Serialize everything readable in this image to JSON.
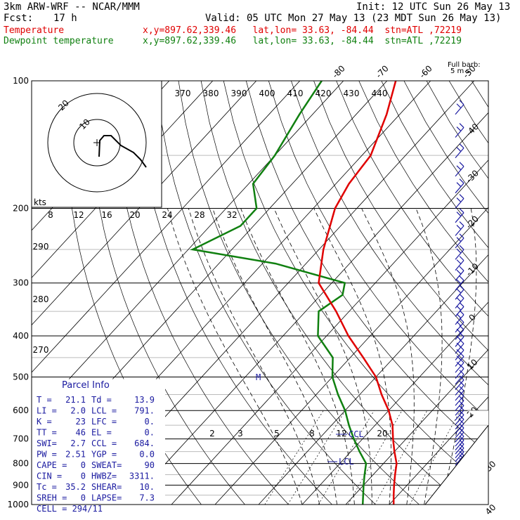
{
  "header": {
    "model": "3km ARW-WRF -- NCAR/MMM",
    "init": "Init: 12 UTC Sun 26 May 13",
    "fcst_label": "Fcst:",
    "fcst_value": "17 h",
    "valid": "Valid: 05 UTC Mon 27 May 13 (23 MDT Sun 26 May 13)",
    "temp_label": "Temperature",
    "dew_label": "Dewpoint temperature",
    "temp_loc": "x,y=897.62,339.46   lat,lon= 33.63, -84.44  stn=ATL ,72219",
    "dew_loc": "x,y=897.62,339.46   lat,lon= 33.63, -84.44  stn=ATL ,72219"
  },
  "colors": {
    "temperature": "#e00000",
    "dewpoint": "#108010",
    "wind": "#1a1aa0",
    "grid": "#000000"
  },
  "chart_data": {
    "type": "line",
    "title": "",
    "y_axis": "pressure (hPa), log scale",
    "pressure_ticks": [
      100,
      200,
      300,
      400,
      500,
      600,
      700,
      800,
      900,
      1000
    ],
    "isotherm_labels": [
      -80,
      -70,
      -60,
      -50,
      -40,
      -30,
      -20,
      -10,
      0,
      10,
      20,
      30,
      40
    ],
    "theta_labels": [
      370,
      380,
      390,
      400,
      410,
      420,
      430,
      440
    ],
    "mixing_ratio_labels_upper": [
      8,
      12,
      16,
      20,
      24,
      28,
      32
    ],
    "mixing_ratio_labels_lower": [
      2,
      3,
      5,
      8,
      12,
      20
    ],
    "theta_e_labels": [
      290,
      280,
      270
    ],
    "series": [
      {
        "name": "Temperature",
        "p": [
          100,
          120,
          150,
          175,
          200,
          250,
          300,
          350,
          400,
          450,
          500,
          550,
          600,
          650,
          700,
          750,
          800,
          850,
          900,
          950,
          1000
        ],
        "t": [
          -68,
          -63,
          -58,
          -57,
          -55,
          -49,
          -43,
          -33,
          -25,
          -17,
          -10,
          -5,
          0,
          4,
          7,
          10,
          13,
          15,
          17,
          19,
          21
        ]
      },
      {
        "name": "Dewpoint temperature",
        "p": [
          100,
          120,
          150,
          175,
          200,
          220,
          250,
          270,
          300,
          320,
          350,
          400,
          450,
          500,
          550,
          600,
          650,
          700,
          750,
          800,
          850,
          900,
          950,
          1000
        ],
        "t": [
          -85,
          -83,
          -80,
          -79,
          -73,
          -73,
          -79,
          -57,
          -37,
          -35,
          -37,
          -32,
          -24,
          -20,
          -15,
          -10,
          -6,
          -2,
          2,
          6,
          8,
          10,
          12,
          13.9
        ]
      }
    ],
    "hodograph_rings": [
      "20",
      "10"
    ],
    "parcel_info": {
      "title": "Parcel Info",
      "rows": [
        [
          "T  =",
          "21.1",
          "Td  =",
          "13.9"
        ],
        [
          "LI =",
          "2.0",
          "LCL =",
          "791."
        ],
        [
          "K  =",
          "23",
          "LFC =",
          "0."
        ],
        [
          "TT =",
          "46",
          "EL  =",
          "0."
        ],
        [
          "SWI=",
          "2.7",
          "CCL =",
          "684."
        ],
        [
          "PW =",
          "2.51",
          "YGP =",
          "0.0"
        ],
        [
          "CAPE =",
          "0",
          "SWEAT=",
          "90"
        ],
        [
          "CIN  =",
          "0",
          "HWBZ=",
          "3311."
        ],
        [
          "Tc   =",
          "35.2",
          "SHEAR=",
          "10."
        ],
        [
          "SREH =",
          "0",
          "LAPSE=",
          "7.3"
        ],
        [
          "CELL = 294/11",
          "",
          "",
          ""
        ]
      ]
    },
    "annotations": {
      "ccl": "CCL",
      "lcl": "LCL",
      "full_barb": "Full barb:",
      "full_barb_unit": "5 m s",
      "kts": "kts",
      "m": "M"
    }
  }
}
